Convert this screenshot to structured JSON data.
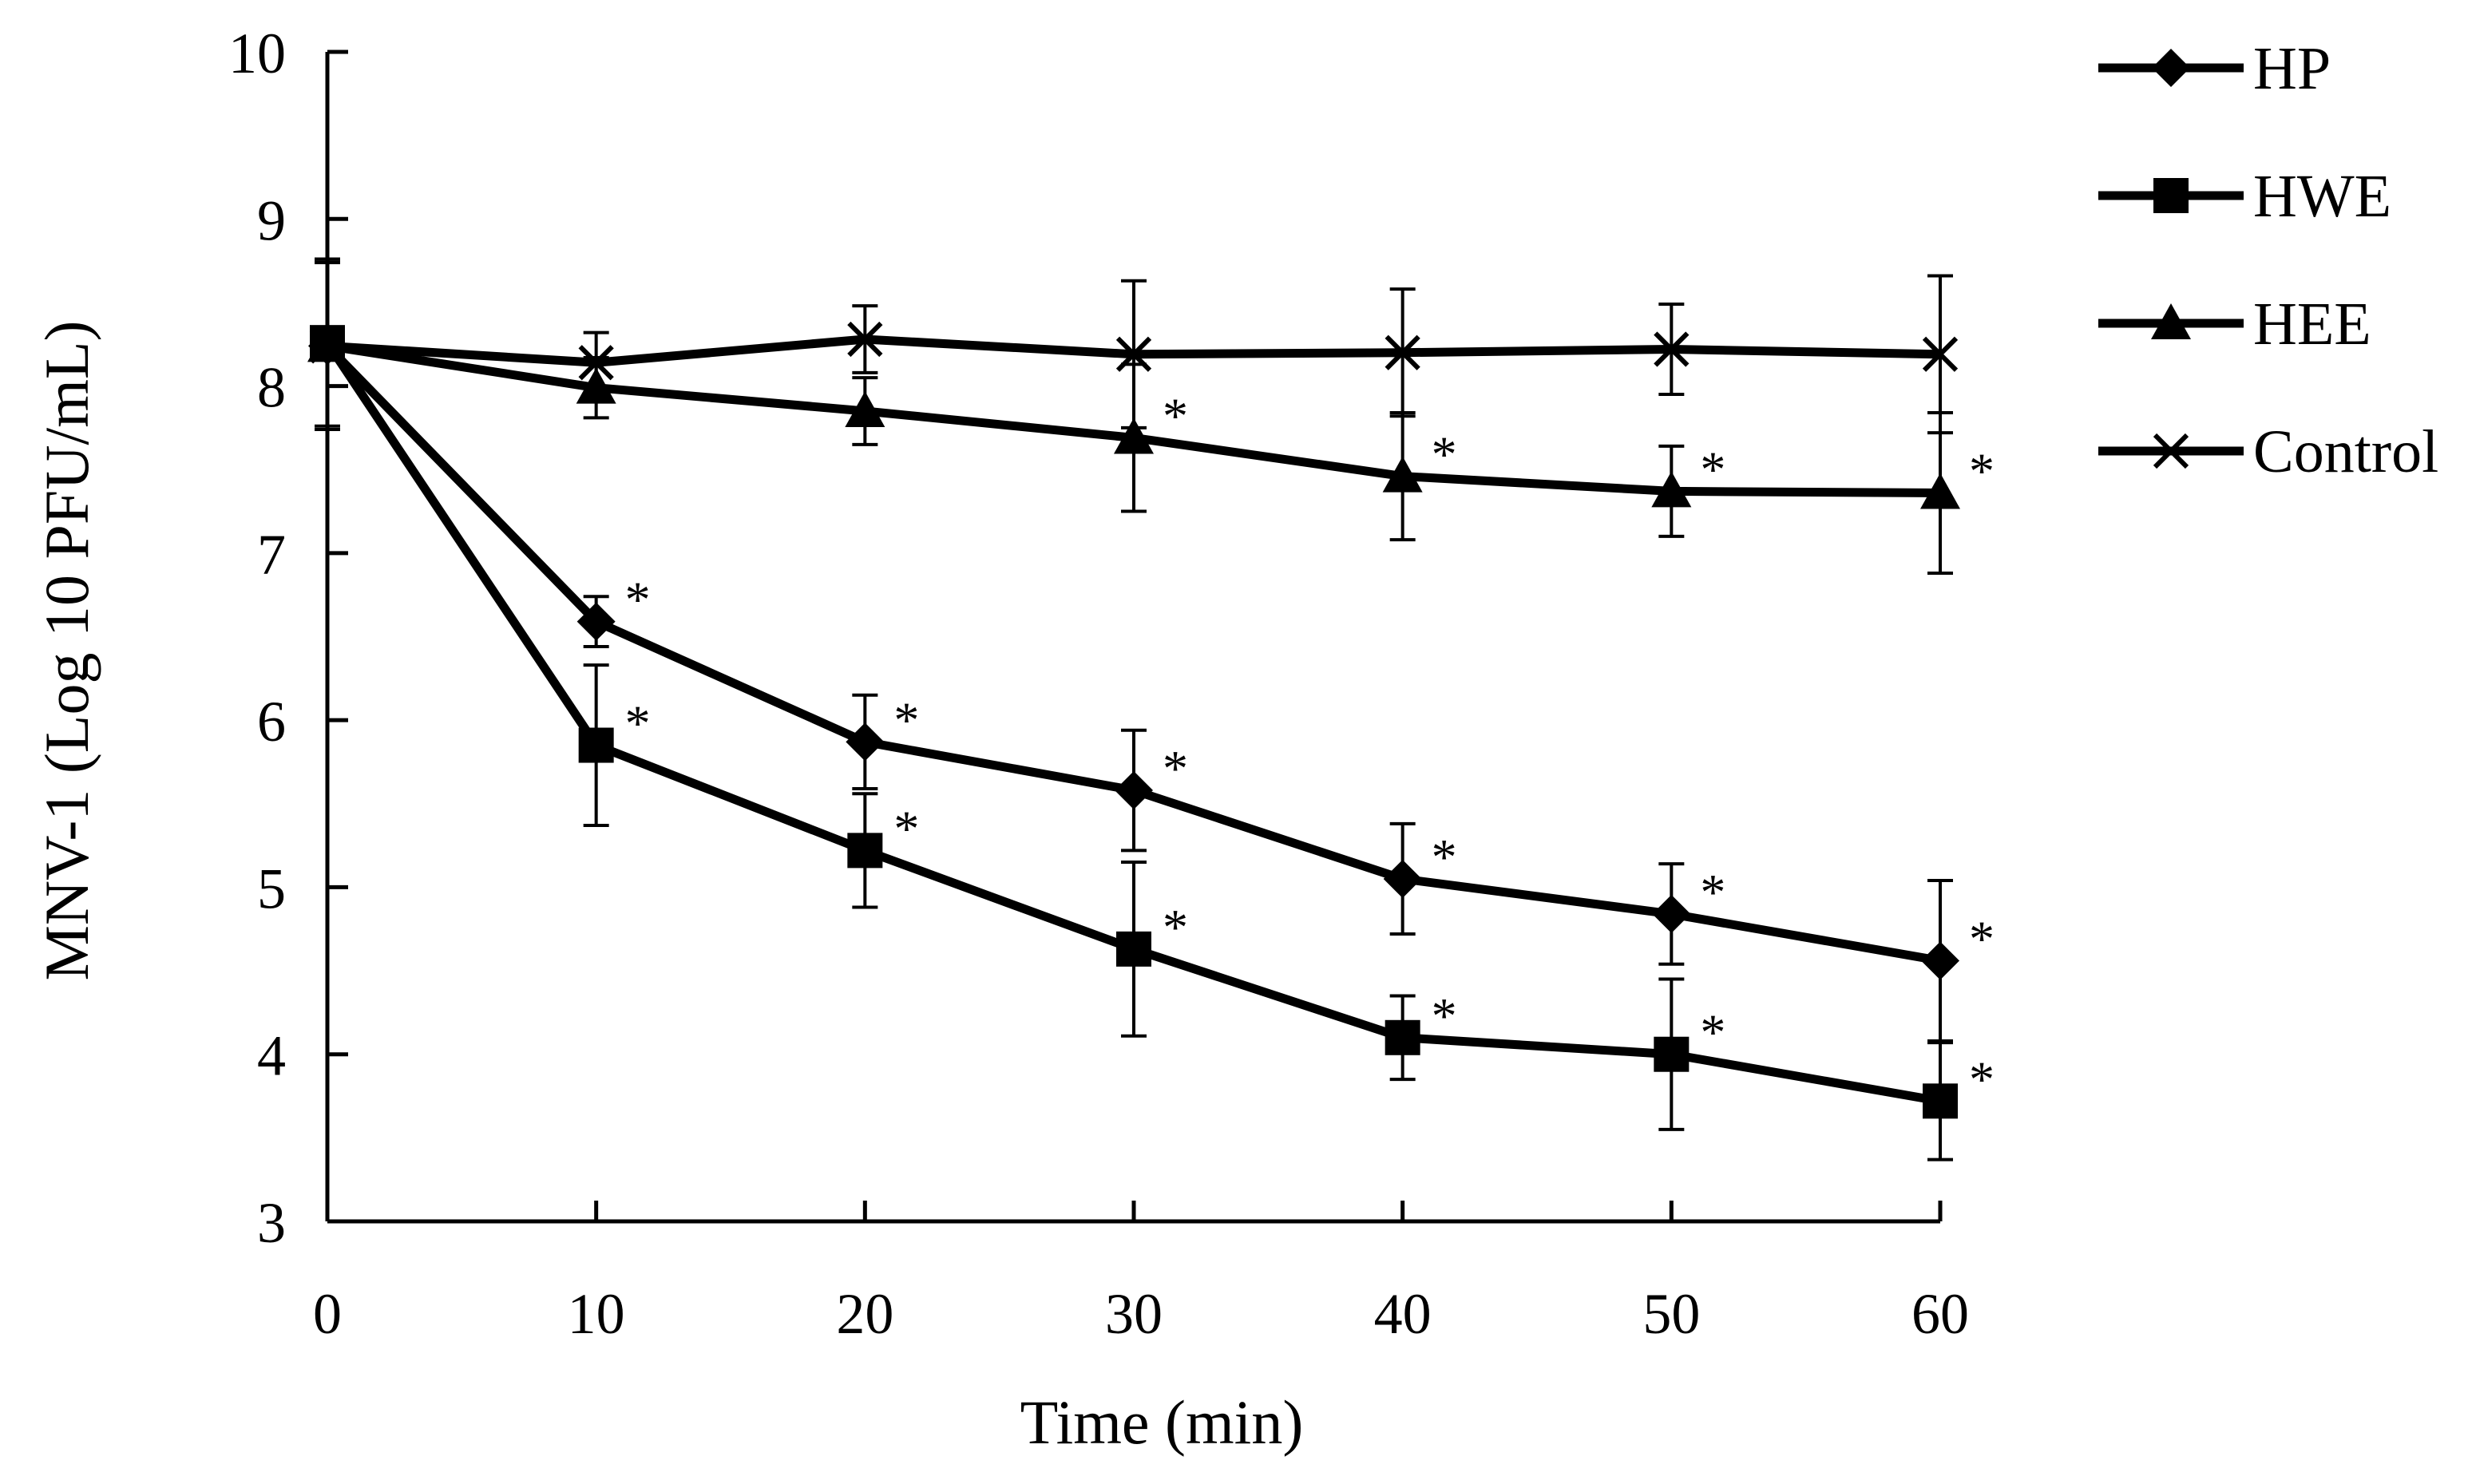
{
  "chart_data": {
    "type": "line",
    "title": "",
    "xlabel": "Time (min)",
    "ylabel": "MNV-1 (Log 10 PFU/mL)",
    "xlim": [
      0,
      60
    ],
    "ylim": [
      3,
      10
    ],
    "x": [
      0,
      10,
      20,
      30,
      40,
      50,
      60
    ],
    "x_tick_labels": [
      "0",
      "10",
      "20",
      "30",
      "40",
      "50",
      "60"
    ],
    "y_ticks": [
      3,
      4,
      5,
      6,
      7,
      8,
      9,
      10
    ],
    "y_tick_labels": [
      "3",
      "4",
      "5",
      "6",
      "7",
      "8",
      "9",
      "10"
    ],
    "grid": false,
    "legend_position": "top-right",
    "significance_marker": "*",
    "series": [
      {
        "name": "HP",
        "marker": "diamond",
        "values": [
          8.24,
          6.59,
          5.87,
          5.58,
          5.05,
          4.84,
          4.56
        ],
        "errors": [
          0.5,
          0.15,
          0.28,
          0.36,
          0.33,
          0.3,
          0.48
        ],
        "significant": [
          false,
          true,
          true,
          true,
          true,
          true,
          true
        ]
      },
      {
        "name": "HWE",
        "marker": "square",
        "values": [
          8.26,
          5.85,
          5.22,
          4.63,
          4.1,
          4.0,
          3.72
        ],
        "errors": [
          0.5,
          0.48,
          0.34,
          0.52,
          0.25,
          0.45,
          0.35
        ],
        "significant": [
          false,
          true,
          true,
          true,
          true,
          true,
          true
        ]
      },
      {
        "name": "HEE",
        "marker": "triangle",
        "values": [
          8.24,
          7.99,
          7.85,
          7.69,
          7.46,
          7.37,
          7.36
        ],
        "errors": [
          0.5,
          0.18,
          0.2,
          0.44,
          0.38,
          0.27,
          0.48
        ],
        "significant": [
          false,
          false,
          false,
          true,
          true,
          true,
          true
        ]
      },
      {
        "name": "Control",
        "marker": "x",
        "values": [
          8.24,
          8.14,
          8.28,
          8.19,
          8.2,
          8.22,
          8.19
        ],
        "errors": [
          0.5,
          0.18,
          0.2,
          0.44,
          0.38,
          0.27,
          0.47
        ],
        "significant": [
          false,
          false,
          false,
          false,
          false,
          false,
          false
        ]
      }
    ]
  }
}
